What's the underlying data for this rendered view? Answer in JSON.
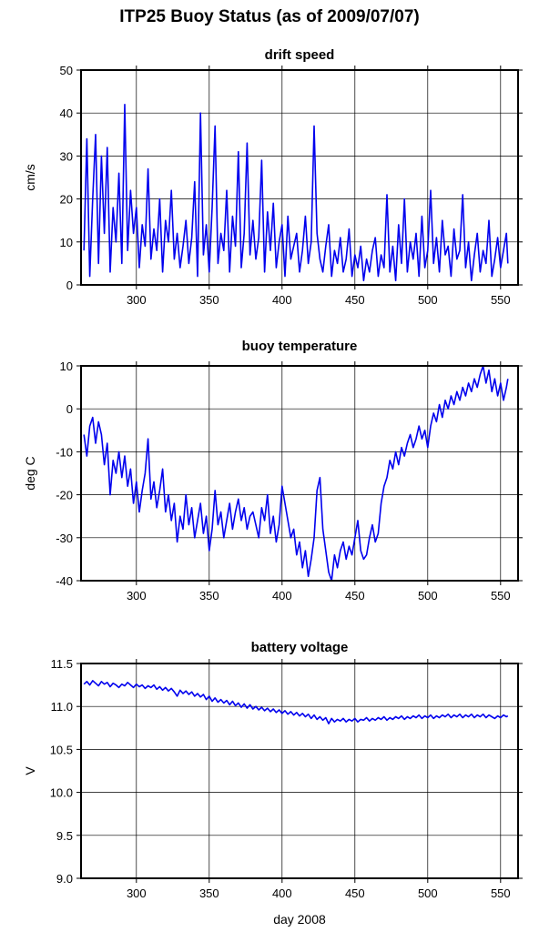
{
  "title": "ITP25 Buoy Status (as of 2009/07/07)",
  "x_axis_label": "day 2008",
  "colors": {
    "line": "#0000ee",
    "grid": "#000000",
    "axis": "#000000",
    "background": "#ffffff"
  },
  "chart_data": [
    {
      "type": "line",
      "title": "drift speed",
      "ylabel": "cm/s",
      "xlabel": "",
      "xlim": [
        262,
        562
      ],
      "ylim": [
        0,
        50
      ],
      "x_ticks": [
        300,
        350,
        400,
        450,
        500,
        550
      ],
      "y_ticks": [
        0,
        10,
        20,
        30,
        40,
        50
      ],
      "grid": true,
      "series": [
        {
          "x": [
            264,
            266,
            268,
            270,
            272,
            274,
            276,
            278,
            280,
            282,
            284,
            286,
            288,
            290,
            292,
            294,
            296,
            298,
            300,
            302,
            304,
            306,
            308,
            310,
            312,
            314,
            316,
            318,
            320,
            322,
            324,
            326,
            328,
            330,
            332,
            334,
            336,
            338,
            340,
            342,
            344,
            346,
            348,
            350,
            352,
            354,
            356,
            358,
            360,
            362,
            364,
            366,
            368,
            370,
            372,
            374,
            376,
            378,
            380,
            382,
            384,
            386,
            388,
            390,
            392,
            394,
            396,
            398,
            400,
            402,
            404,
            406,
            408,
            410,
            412,
            414,
            416,
            418,
            420,
            422,
            424,
            426,
            428,
            430,
            432,
            434,
            436,
            438,
            440,
            442,
            444,
            446,
            448,
            450,
            452,
            454,
            456,
            458,
            460,
            462,
            464,
            466,
            468,
            470,
            472,
            474,
            476,
            478,
            480,
            482,
            484,
            486,
            488,
            490,
            492,
            494,
            496,
            498,
            500,
            502,
            504,
            506,
            508,
            510,
            512,
            514,
            516,
            518,
            520,
            522,
            524,
            526,
            528,
            530,
            532,
            534,
            536,
            538,
            540,
            542,
            544,
            546,
            548,
            550,
            552,
            554,
            555
          ],
          "y": [
            8,
            34,
            2,
            20,
            35,
            5,
            30,
            12,
            32,
            3,
            18,
            10,
            26,
            5,
            42,
            8,
            22,
            12,
            18,
            4,
            14,
            9,
            27,
            6,
            13,
            8,
            20,
            3,
            15,
            10,
            22,
            6,
            12,
            4,
            9,
            15,
            5,
            11,
            24,
            2,
            40,
            7,
            14,
            3,
            18,
            37,
            5,
            12,
            8,
            22,
            3,
            16,
            9,
            31,
            4,
            12,
            33,
            7,
            15,
            6,
            11,
            29,
            3,
            17,
            8,
            19,
            4,
            10,
            14,
            2,
            16,
            6,
            9,
            12,
            3,
            8,
            16,
            5,
            10,
            37,
            12,
            6,
            3,
            9,
            14,
            2,
            8,
            5,
            11,
            3,
            6,
            13,
            2,
            7,
            4,
            9,
            1,
            6,
            3,
            8,
            11,
            2,
            7,
            4,
            21,
            3,
            9,
            1,
            14,
            5,
            20,
            3,
            10,
            6,
            12,
            2,
            16,
            4,
            8,
            22,
            5,
            11,
            3,
            15,
            7,
            9,
            2,
            13,
            6,
            8,
            21,
            4,
            10,
            1,
            7,
            12,
            3,
            8,
            5,
            15,
            2,
            6,
            11,
            4,
            8,
            12,
            5
          ]
        }
      ]
    },
    {
      "type": "line",
      "title": "buoy temperature",
      "ylabel": "deg C",
      "xlabel": "",
      "xlim": [
        262,
        562
      ],
      "ylim": [
        -40,
        10
      ],
      "x_ticks": [
        300,
        350,
        400,
        450,
        500,
        550
      ],
      "y_ticks": [
        -40,
        -30,
        -20,
        -10,
        0,
        10
      ],
      "grid": true,
      "series": [
        {
          "x": [
            264,
            266,
            268,
            270,
            272,
            274,
            276,
            278,
            280,
            282,
            284,
            286,
            288,
            290,
            292,
            294,
            296,
            298,
            300,
            302,
            304,
            306,
            308,
            310,
            312,
            314,
            316,
            318,
            320,
            322,
            324,
            326,
            328,
            330,
            332,
            334,
            336,
            338,
            340,
            342,
            344,
            346,
            348,
            350,
            352,
            354,
            356,
            358,
            360,
            362,
            364,
            366,
            368,
            370,
            372,
            374,
            376,
            378,
            380,
            382,
            384,
            386,
            388,
            390,
            392,
            394,
            396,
            398,
            400,
            402,
            404,
            406,
            408,
            410,
            412,
            414,
            416,
            418,
            420,
            422,
            424,
            426,
            428,
            430,
            432,
            434,
            436,
            438,
            440,
            442,
            444,
            446,
            448,
            450,
            452,
            454,
            456,
            458,
            460,
            462,
            464,
            466,
            468,
            470,
            472,
            474,
            476,
            478,
            480,
            482,
            484,
            486,
            488,
            490,
            492,
            494,
            496,
            498,
            500,
            502,
            504,
            506,
            508,
            510,
            512,
            514,
            516,
            518,
            520,
            522,
            524,
            526,
            528,
            530,
            532,
            534,
            536,
            538,
            540,
            542,
            544,
            546,
            548,
            550,
            552,
            554,
            555
          ],
          "y": [
            -6,
            -11,
            -4,
            -2,
            -8,
            -3,
            -6,
            -13,
            -8,
            -20,
            -12,
            -15,
            -10,
            -16,
            -11,
            -18,
            -14,
            -22,
            -17,
            -24,
            -19,
            -15,
            -7,
            -21,
            -17,
            -23,
            -19,
            -14,
            -24,
            -20,
            -26,
            -22,
            -31,
            -25,
            -28,
            -20,
            -27,
            -23,
            -30,
            -26,
            -22,
            -29,
            -25,
            -33,
            -28,
            -19,
            -27,
            -24,
            -30,
            -26,
            -22,
            -28,
            -24,
            -21,
            -26,
            -23,
            -28,
            -25,
            -24,
            -27,
            -30,
            -23,
            -26,
            -20,
            -29,
            -25,
            -31,
            -27,
            -18,
            -22,
            -26,
            -30,
            -28,
            -34,
            -31,
            -37,
            -33,
            -39,
            -35,
            -30,
            -19,
            -16,
            -28,
            -33,
            -38,
            -40,
            -34,
            -37,
            -33,
            -31,
            -35,
            -32,
            -34,
            -30,
            -26,
            -33,
            -35,
            -34,
            -30,
            -27,
            -31,
            -29,
            -22,
            -18,
            -16,
            -12,
            -14,
            -10,
            -13,
            -9,
            -11,
            -8,
            -6,
            -9,
            -7,
            -4,
            -7,
            -5,
            -9,
            -4,
            -1,
            -3,
            1,
            -2,
            2,
            0,
            3,
            1,
            4,
            2,
            5,
            3,
            6,
            4,
            7,
            5,
            8,
            10,
            6,
            9,
            4,
            7,
            3,
            6,
            2,
            5,
            7
          ]
        }
      ]
    },
    {
      "type": "line",
      "title": "battery voltage",
      "ylabel": "V",
      "xlabel": "day 2008",
      "xlim": [
        262,
        562
      ],
      "ylim": [
        9.0,
        11.5
      ],
      "x_ticks": [
        300,
        350,
        400,
        450,
        500,
        550
      ],
      "y_ticks": [
        9.0,
        9.5,
        10.0,
        10.5,
        11.0,
        11.5
      ],
      "grid": true,
      "series": [
        {
          "x": [
            264,
            266,
            268,
            270,
            272,
            274,
            276,
            278,
            280,
            282,
            284,
            286,
            288,
            290,
            292,
            294,
            296,
            298,
            300,
            302,
            304,
            306,
            308,
            310,
            312,
            314,
            316,
            318,
            320,
            322,
            324,
            326,
            328,
            330,
            332,
            334,
            336,
            338,
            340,
            342,
            344,
            346,
            348,
            350,
            352,
            354,
            356,
            358,
            360,
            362,
            364,
            366,
            368,
            370,
            372,
            374,
            376,
            378,
            380,
            382,
            384,
            386,
            388,
            390,
            392,
            394,
            396,
            398,
            400,
            402,
            404,
            406,
            408,
            410,
            412,
            414,
            416,
            418,
            420,
            422,
            424,
            426,
            428,
            430,
            432,
            434,
            436,
            438,
            440,
            442,
            444,
            446,
            448,
            450,
            452,
            454,
            456,
            458,
            460,
            462,
            464,
            466,
            468,
            470,
            472,
            474,
            476,
            478,
            480,
            482,
            484,
            486,
            488,
            490,
            492,
            494,
            496,
            498,
            500,
            502,
            504,
            506,
            508,
            510,
            512,
            514,
            516,
            518,
            520,
            522,
            524,
            526,
            528,
            530,
            532,
            534,
            536,
            538,
            540,
            542,
            544,
            546,
            548,
            550,
            552,
            554,
            555
          ],
          "y": [
            11.26,
            11.29,
            11.25,
            11.3,
            11.27,
            11.24,
            11.29,
            11.26,
            11.28,
            11.23,
            11.27,
            11.25,
            11.22,
            11.26,
            11.24,
            11.28,
            11.25,
            11.22,
            11.26,
            11.23,
            11.25,
            11.21,
            11.24,
            11.22,
            11.25,
            11.2,
            11.23,
            11.19,
            11.22,
            11.18,
            11.21,
            11.17,
            11.12,
            11.19,
            11.15,
            11.18,
            11.14,
            11.17,
            11.12,
            11.15,
            11.11,
            11.14,
            11.08,
            11.12,
            11.06,
            11.1,
            11.05,
            11.08,
            11.04,
            11.07,
            11.02,
            11.06,
            11.01,
            11.04,
            10.99,
            11.03,
            10.98,
            11.02,
            10.97,
            11.0,
            10.96,
            10.99,
            10.95,
            10.98,
            10.94,
            10.97,
            10.93,
            10.96,
            10.92,
            10.95,
            10.91,
            10.94,
            10.9,
            10.93,
            10.89,
            10.92,
            10.88,
            10.91,
            10.86,
            10.9,
            10.85,
            10.88,
            10.84,
            10.87,
            10.8,
            10.86,
            10.82,
            10.85,
            10.83,
            10.86,
            10.82,
            10.85,
            10.83,
            10.86,
            10.82,
            10.85,
            10.84,
            10.87,
            10.83,
            10.86,
            10.84,
            10.87,
            10.85,
            10.88,
            10.84,
            10.87,
            10.85,
            10.88,
            10.86,
            10.89,
            10.85,
            10.88,
            10.86,
            10.89,
            10.87,
            10.9,
            10.86,
            10.89,
            10.87,
            10.9,
            10.86,
            10.89,
            10.87,
            10.9,
            10.88,
            10.91,
            10.87,
            10.9,
            10.88,
            10.91,
            10.87,
            10.9,
            10.88,
            10.91,
            10.87,
            10.9,
            10.88,
            10.91,
            10.87,
            10.9,
            10.88,
            10.86,
            10.89,
            10.87,
            10.9,
            10.88,
            10.89
          ]
        }
      ]
    }
  ]
}
